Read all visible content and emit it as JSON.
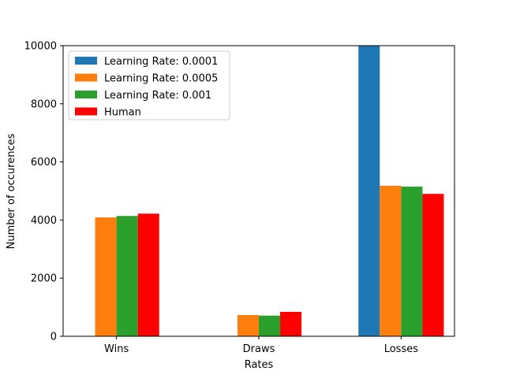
{
  "chart_data": {
    "type": "bar",
    "categories": [
      "Wins",
      "Draws",
      "Losses"
    ],
    "series": [
      {
        "name": "Learning Rate: 0.0001",
        "color": "#1f77b4",
        "values": [
          0,
          0,
          10000
        ]
      },
      {
        "name": "Learning Rate: 0.0005",
        "color": "#ff7f0e",
        "values": [
          4090,
          730,
          5180
        ]
      },
      {
        "name": "Learning Rate: 0.001",
        "color": "#2ca02c",
        "values": [
          4140,
          710,
          5150
        ]
      },
      {
        "name": "Human",
        "color": "#ff0000",
        "values": [
          4220,
          840,
          4900
        ]
      }
    ],
    "xlabel": "Rates",
    "ylabel": "Number of occurences",
    "ylim": [
      0,
      10000
    ],
    "yticks": [
      0,
      2000,
      4000,
      6000,
      8000,
      10000
    ],
    "grid": false,
    "legend_position": "top-left"
  }
}
